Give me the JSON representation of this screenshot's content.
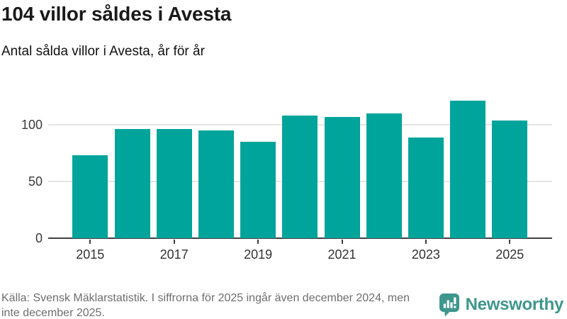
{
  "header": {
    "title": "104 villor såldes i Avesta",
    "subtitle": "Antal sålda villor i Avesta, år för år"
  },
  "chart_data": {
    "type": "bar",
    "title": "104 villor såldes i Avesta",
    "subtitle": "Antal sålda villor i Avesta, år för år",
    "categories": [
      "2015",
      "2016",
      "2017",
      "2018",
      "2019",
      "2020",
      "2021",
      "2022",
      "2023",
      "2024",
      "2025"
    ],
    "values": [
      73,
      96,
      96,
      95,
      85,
      108,
      107,
      110,
      89,
      121,
      104
    ],
    "xtick_labels": [
      "2015",
      "2017",
      "2019",
      "2021",
      "2023",
      "2025"
    ],
    "ytick_labels": [
      "0",
      "50",
      "100"
    ],
    "yticks": [
      0,
      50,
      100
    ],
    "ylim": [
      0,
      128
    ],
    "xlabel": "",
    "ylabel": "",
    "grid": "horizontal-behind-bars",
    "legend": "none",
    "bar_color": "#00a49b"
  },
  "footer": {
    "lines": [
      "Källa: Svensk Mäklarstatistik. I siffrorna för 2025 ingår även december 2024, men",
      "inte december 2025."
    ],
    "brand": {
      "name": "Newsworthy",
      "color": "#3e968d"
    }
  }
}
